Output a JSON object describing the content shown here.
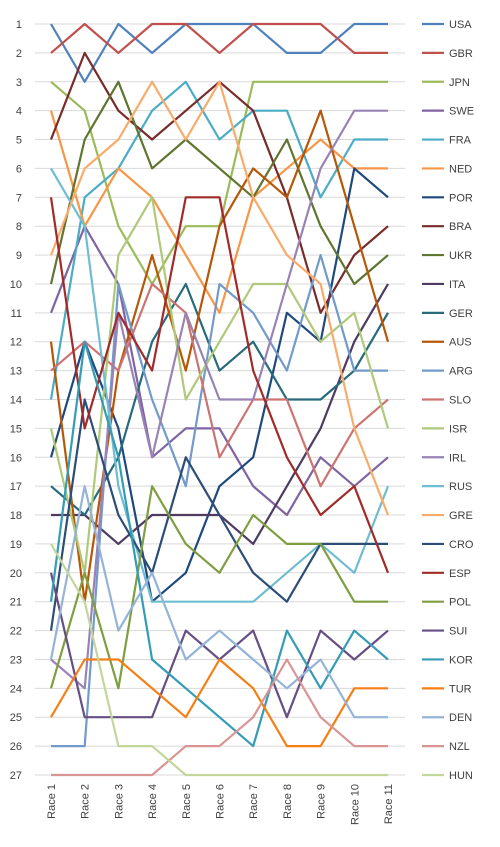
{
  "chart_data": {
    "type": "line",
    "title": "",
    "xlabel": "",
    "ylabel": "",
    "ylim": [
      27,
      1
    ],
    "y_ticks": [
      1,
      2,
      3,
      4,
      5,
      6,
      7,
      8,
      9,
      10,
      11,
      12,
      13,
      14,
      15,
      16,
      17,
      18,
      19,
      20,
      21,
      22,
      23,
      24,
      25,
      26,
      27
    ],
    "grid": "horizontal",
    "legend_position": "right",
    "categories": [
      "Race 1",
      "Race 2",
      "Race 3",
      "Race 4",
      "Race 5",
      "Race 6",
      "Race 7",
      "Race 8",
      "Race 9",
      "Race 10",
      "Race 11"
    ],
    "series": [
      {
        "name": "USA",
        "color": "#4f81bd",
        "values": [
          1,
          3,
          1,
          2,
          1,
          1,
          1,
          2,
          2,
          1,
          1
        ]
      },
      {
        "name": "GBR",
        "color": "#c0504d",
        "values": [
          2,
          1,
          2,
          1,
          1,
          2,
          1,
          1,
          1,
          2,
          2
        ]
      },
      {
        "name": "JPN",
        "color": "#9bbb59",
        "values": [
          3,
          4,
          8,
          10,
          8,
          8,
          3,
          3,
          3,
          3,
          3
        ]
      },
      {
        "name": "SWE",
        "color": "#8064a2",
        "values": [
          11,
          8,
          10,
          16,
          15,
          15,
          17,
          18,
          16,
          17,
          16
        ]
      },
      {
        "name": "FRA",
        "color": "#4bacc6",
        "values": [
          14,
          7,
          6,
          4,
          3,
          5,
          4,
          4,
          7,
          5,
          5
        ]
      },
      {
        "name": "NED",
        "color": "#f79646",
        "values": [
          4,
          8,
          6,
          7,
          9,
          11,
          7,
          6,
          5,
          6,
          6
        ]
      },
      {
        "name": "POR",
        "color": "#1f497d",
        "values": [
          16,
          12,
          15,
          21,
          20,
          17,
          16,
          11,
          12,
          6,
          7
        ]
      },
      {
        "name": "BRA",
        "color": "#772c2a",
        "values": [
          5,
          2,
          4,
          5,
          4,
          3,
          4,
          7,
          11,
          9,
          8
        ]
      },
      {
        "name": "UKR",
        "color": "#5f7530",
        "values": [
          10,
          5,
          3,
          6,
          5,
          6,
          7,
          5,
          8,
          10,
          9
        ]
      },
      {
        "name": "ITA",
        "color": "#4d3b62",
        "values": [
          18,
          18,
          19,
          18,
          18,
          18,
          19,
          17,
          15,
          12,
          10
        ]
      },
      {
        "name": "GER",
        "color": "#276a7c",
        "values": [
          17,
          18,
          16,
          12,
          10,
          13,
          12,
          14,
          14,
          13,
          11
        ]
      },
      {
        "name": "AUS",
        "color": "#b65708",
        "values": [
          12,
          21,
          13,
          9,
          13,
          8,
          6,
          7,
          4,
          8,
          12
        ]
      },
      {
        "name": "ARG",
        "color": "#729aca",
        "values": [
          26,
          26,
          10,
          14,
          17,
          10,
          11,
          13,
          9,
          13,
          13
        ]
      },
      {
        "name": "SLO",
        "color": "#cd7371",
        "values": [
          13,
          12,
          13,
          10,
          11,
          16,
          14,
          14,
          17,
          15,
          14
        ]
      },
      {
        "name": "ISR",
        "color": "#afc97a",
        "values": [
          15,
          20,
          9,
          7,
          14,
          12,
          10,
          10,
          12,
          11,
          15
        ]
      },
      {
        "name": "IRL",
        "color": "#9983b5",
        "values": [
          23,
          24,
          11,
          16,
          11,
          14,
          14,
          10,
          6,
          4,
          4
        ]
      },
      {
        "name": "RUS",
        "color": "#6fbdd1",
        "values": [
          6,
          8,
          17,
          21,
          21,
          21,
          21,
          20,
          19,
          20,
          17
        ]
      },
      {
        "name": "GRE",
        "color": "#f9ab6b",
        "values": [
          9,
          6,
          5,
          3,
          5,
          3,
          7,
          9,
          10,
          15,
          18
        ]
      },
      {
        "name": "CRO",
        "color": "#2c4d75",
        "values": [
          22,
          14,
          18,
          20,
          16,
          18,
          20,
          21,
          19,
          19,
          19
        ]
      },
      {
        "name": "ESP",
        "color": "#a02b29",
        "values": [
          7,
          15,
          11,
          13,
          7,
          7,
          13,
          16,
          18,
          17,
          20
        ]
      },
      {
        "name": "POL",
        "color": "#7f9e40",
        "values": [
          24,
          20,
          24,
          17,
          19,
          20,
          18,
          19,
          19,
          21,
          21
        ]
      },
      {
        "name": "SUI",
        "color": "#664f83",
        "values": [
          20,
          25,
          25,
          25,
          22,
          23,
          22,
          25,
          22,
          23,
          22
        ]
      },
      {
        "name": "KOR",
        "color": "#349cb5",
        "values": [
          21,
          12,
          16,
          23,
          24,
          25,
          26,
          22,
          24,
          22,
          23
        ]
      },
      {
        "name": "TUR",
        "color": "#f57f14",
        "values": [
          25,
          23,
          23,
          24,
          25,
          23,
          24,
          26,
          26,
          24,
          24
        ]
      },
      {
        "name": "DEN",
        "color": "#95b3d7",
        "values": [
          23,
          17,
          22,
          20,
          23,
          22,
          23,
          24,
          23,
          25,
          25
        ]
      },
      {
        "name": "NZL",
        "color": "#d99594",
        "values": [
          27,
          27,
          27,
          27,
          26,
          26,
          25,
          23,
          25,
          26,
          26
        ]
      },
      {
        "name": "HUN",
        "color": "#c3d69b",
        "values": [
          19,
          21,
          26,
          26,
          27,
          27,
          27,
          27,
          27,
          27,
          27
        ]
      }
    ]
  }
}
